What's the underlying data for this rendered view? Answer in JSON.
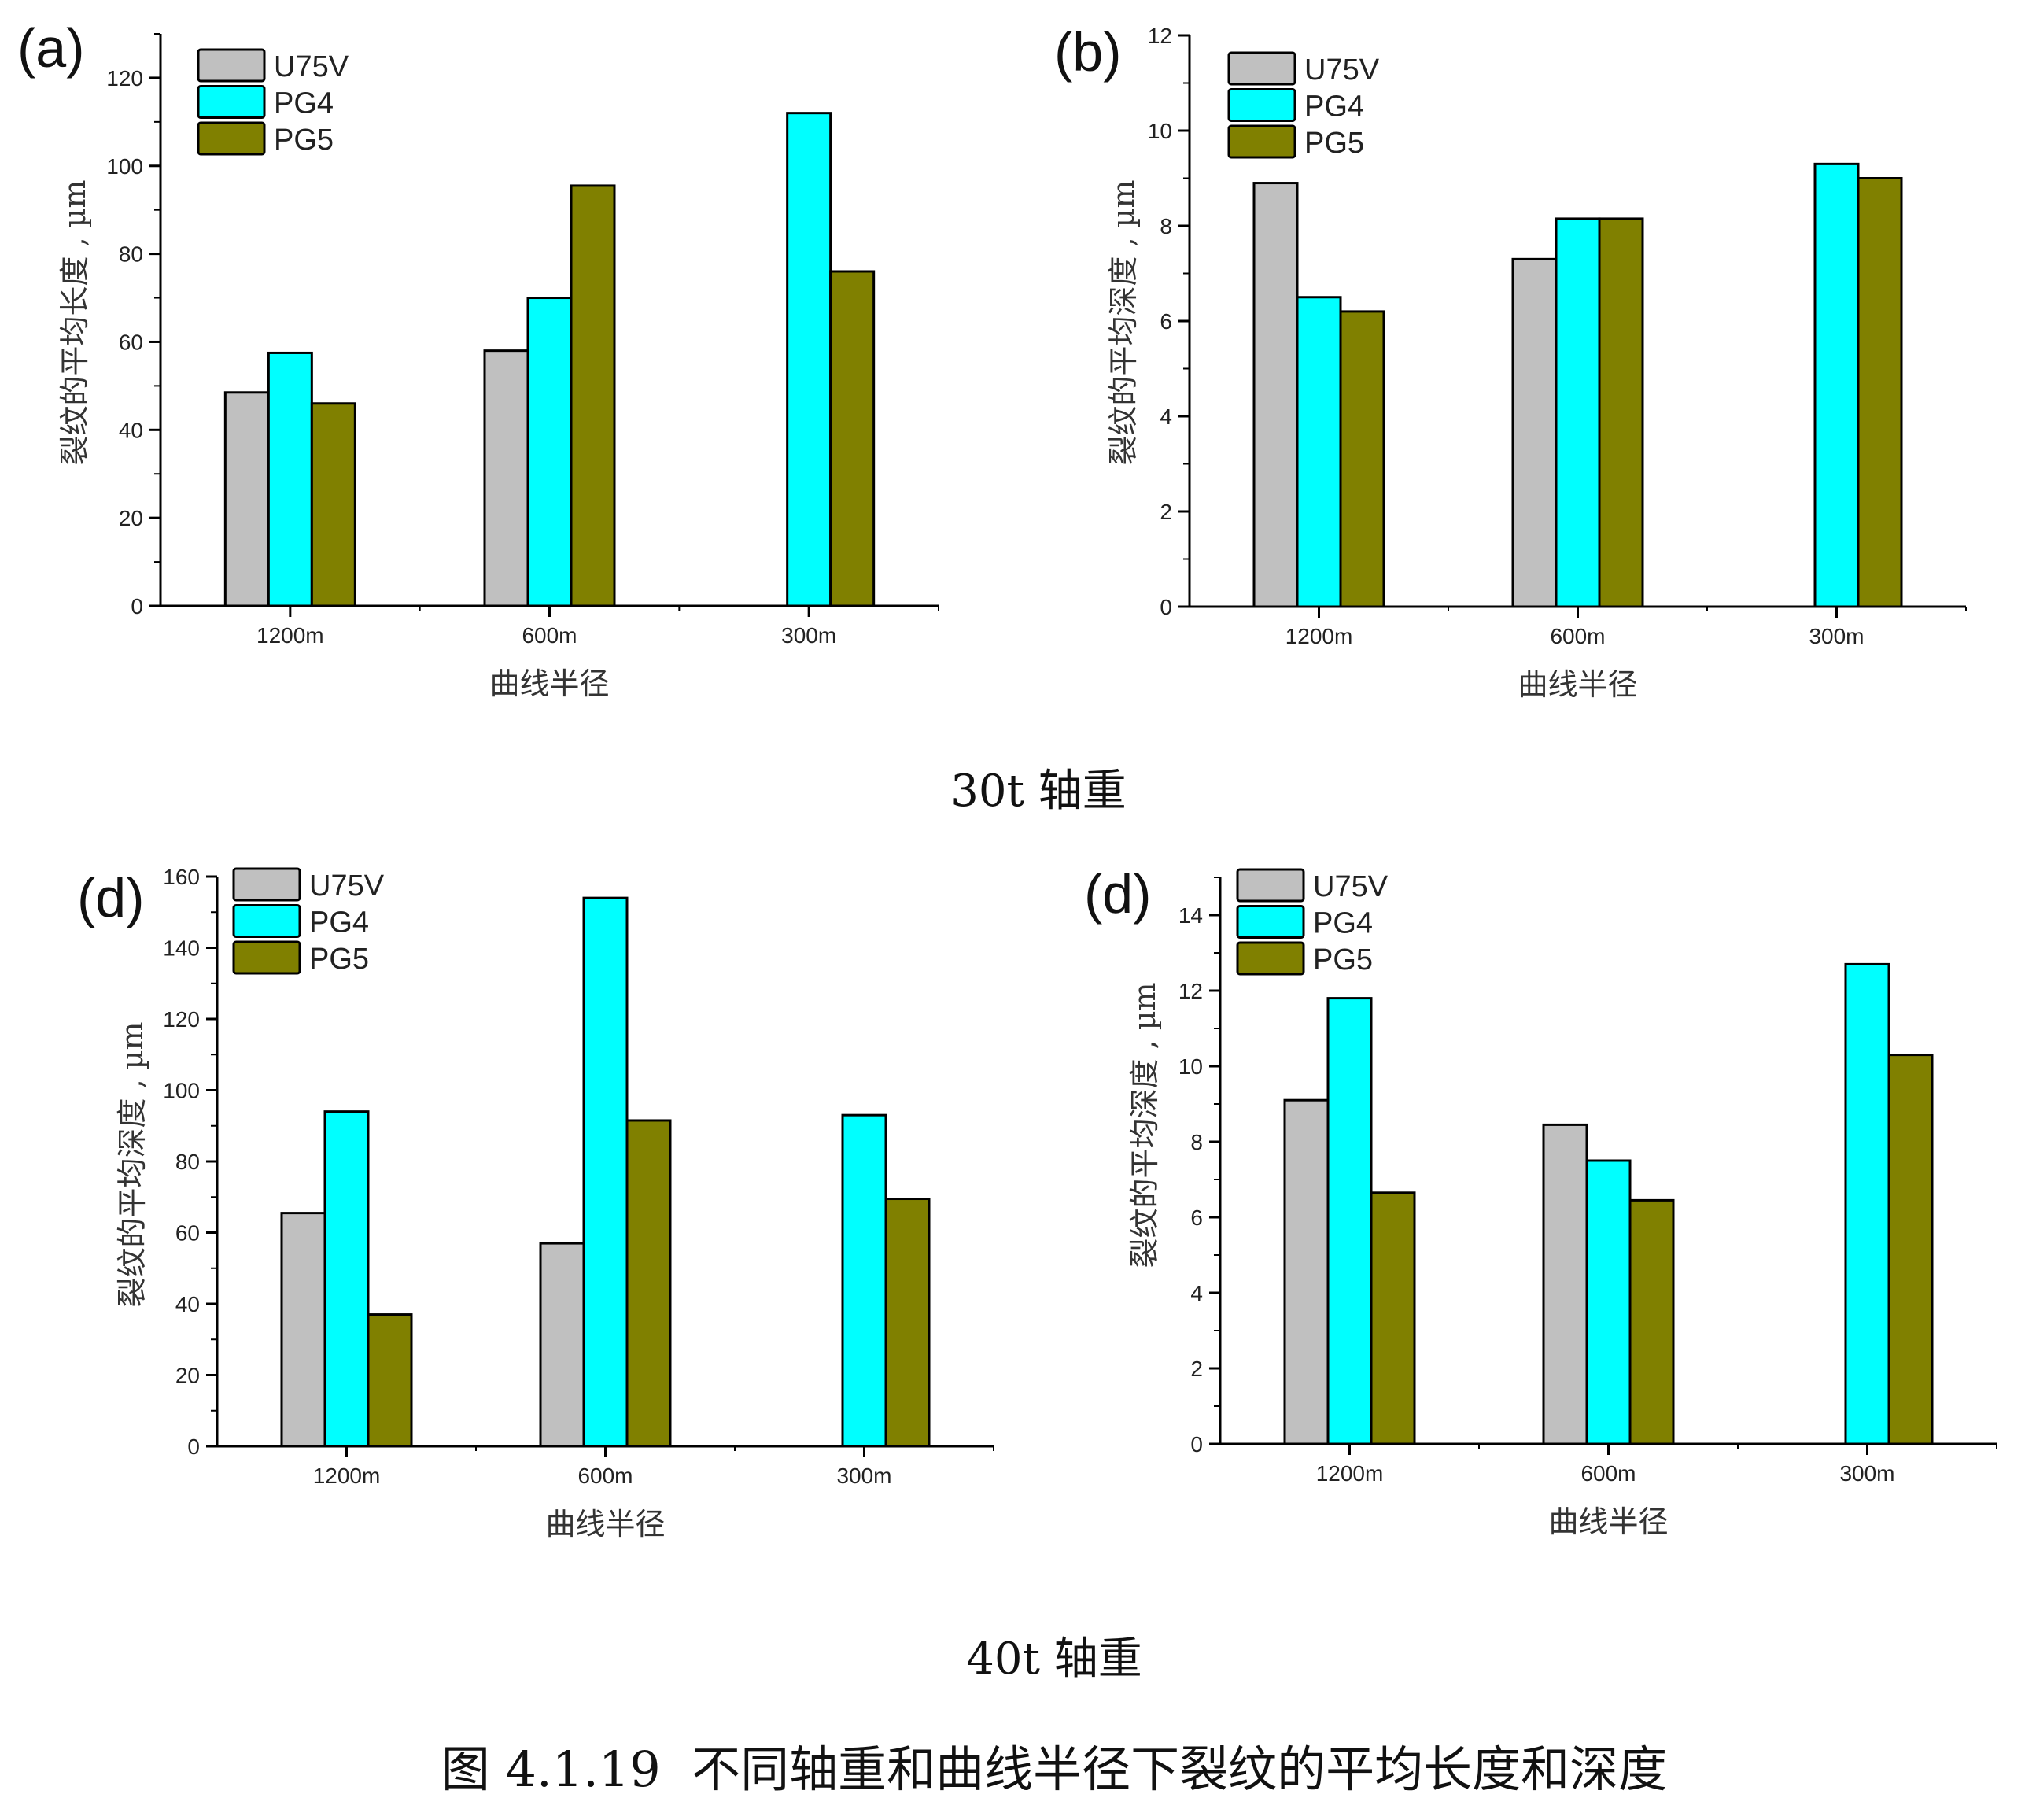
{
  "figure": {
    "group_caption_top": "30t 轴重",
    "group_caption_bottom": "40t 轴重",
    "figure_caption": "图 4.1.19  不同轴重和曲线半径下裂纹的平均长度和深度"
  },
  "colors": {
    "U75V": "#c0c0c0",
    "PG4": "#00ffff",
    "PG5": "#808000",
    "axis": "#000000"
  },
  "chart_data": [
    {
      "id": "a",
      "type": "bar",
      "panel_label": "(a)",
      "title": "",
      "xlabel": "曲线半径",
      "ylabel": "裂纹的平均长度 , µm",
      "categories": [
        "1200m",
        "600m",
        "300m"
      ],
      "series": [
        {
          "name": "U75V",
          "values": [
            48.5,
            58,
            null
          ]
        },
        {
          "name": "PG4",
          "values": [
            57.5,
            70,
            112
          ]
        },
        {
          "name": "PG5",
          "values": [
            46,
            95.5,
            76
          ]
        }
      ],
      "ylim": [
        0,
        130
      ],
      "yticks": [
        0,
        20,
        40,
        60,
        80,
        100,
        120
      ],
      "ytick_labels": [
        "0",
        "20",
        "40",
        "60",
        "80",
        "100",
        "120"
      ],
      "yminor_step": 10,
      "grid": false,
      "legend": "top-left"
    },
    {
      "id": "b",
      "type": "bar",
      "panel_label": "(b)",
      "title": "",
      "xlabel": "曲线半径",
      "ylabel": "裂纹的平均深度 , µm",
      "categories": [
        "1200m",
        "600m",
        "300m"
      ],
      "series": [
        {
          "name": "U75V",
          "values": [
            8.9,
            7.3,
            null
          ]
        },
        {
          "name": "PG4",
          "values": [
            6.5,
            8.15,
            9.3
          ]
        },
        {
          "name": "PG5",
          "values": [
            6.2,
            8.15,
            9.0
          ]
        }
      ],
      "ylim": [
        0,
        12
      ],
      "yticks": [
        0,
        2,
        4,
        6,
        8,
        10,
        12
      ],
      "ytick_labels": [
        "0",
        "2",
        "4",
        "6",
        "8",
        "10",
        "12"
      ],
      "yminor_step": 1,
      "grid": false,
      "legend": "top-left"
    },
    {
      "id": "c",
      "type": "bar",
      "panel_label": "(d)",
      "title": "",
      "xlabel": "曲线半径",
      "ylabel": "裂纹的平均深度 , µm",
      "categories": [
        "1200m",
        "600m",
        "300m"
      ],
      "series": [
        {
          "name": "U75V",
          "values": [
            65.5,
            57,
            null
          ]
        },
        {
          "name": "PG4",
          "values": [
            94,
            154,
            93
          ]
        },
        {
          "name": "PG5",
          "values": [
            37,
            91.5,
            69.5
          ]
        }
      ],
      "ylim": [
        0,
        160
      ],
      "yticks": [
        0,
        20,
        40,
        60,
        80,
        100,
        120,
        140,
        160
      ],
      "ytick_labels": [
        "0",
        "20",
        "40",
        "60",
        "80",
        "100",
        "120",
        "140",
        "160"
      ],
      "yminor_step": 10,
      "grid": false,
      "legend": "top-left"
    },
    {
      "id": "d",
      "type": "bar",
      "panel_label": "(d)",
      "title": "",
      "xlabel": "曲线半径",
      "ylabel": "裂纹的平均深度 , µm",
      "categories": [
        "1200m",
        "600m",
        "300m"
      ],
      "series": [
        {
          "name": "U75V",
          "values": [
            9.1,
            8.45,
            null
          ]
        },
        {
          "name": "PG4",
          "values": [
            11.8,
            7.5,
            12.7
          ]
        },
        {
          "name": "PG5",
          "values": [
            6.65,
            6.45,
            10.3
          ]
        }
      ],
      "ylim": [
        0,
        15
      ],
      "yticks": [
        0,
        2,
        4,
        6,
        8,
        10,
        12,
        14
      ],
      "ytick_labels": [
        "0",
        "2",
        "4",
        "6",
        "8",
        "10",
        "12",
        "14"
      ],
      "yminor_step": 1,
      "grid": false,
      "legend": "top-left"
    }
  ]
}
